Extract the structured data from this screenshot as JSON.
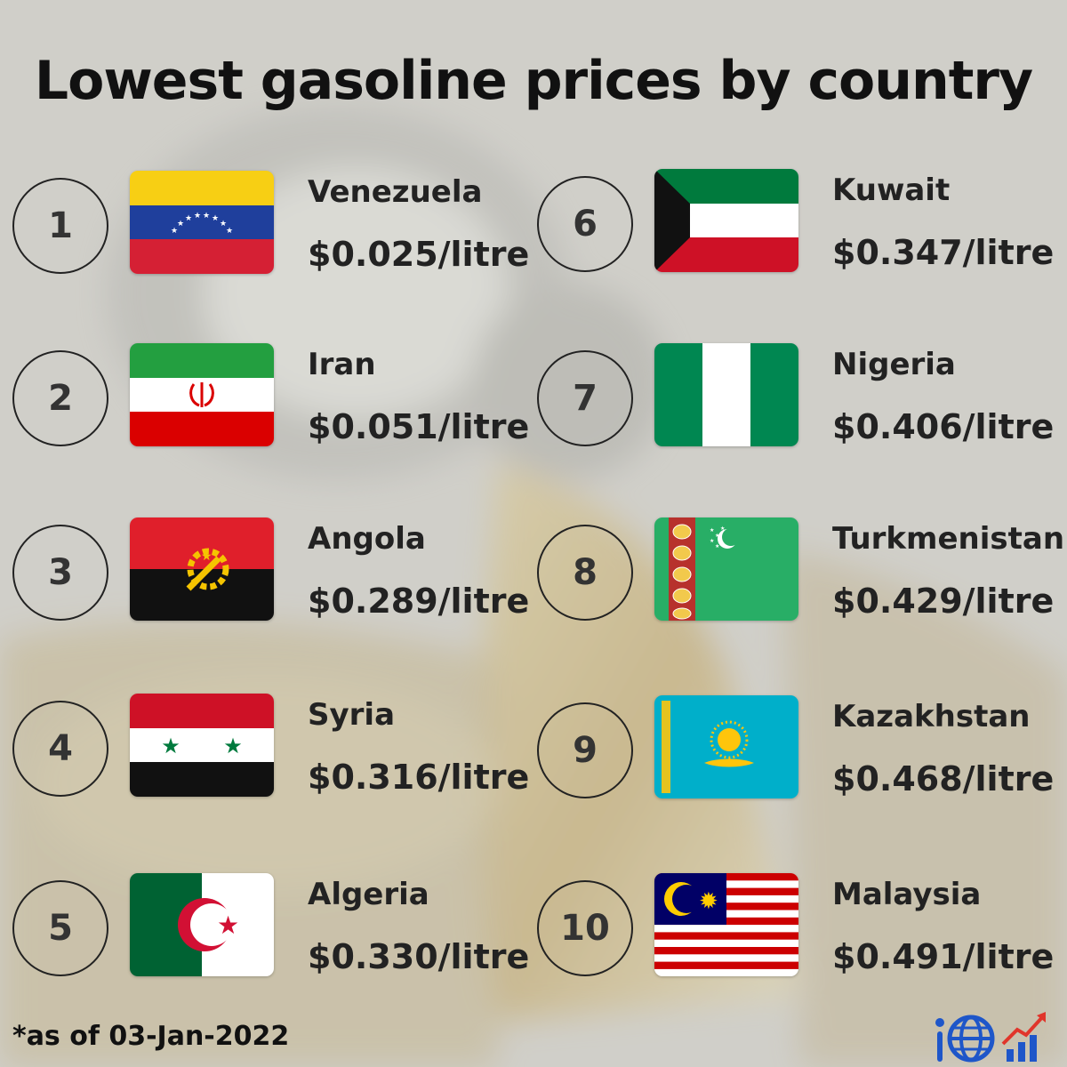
{
  "title": "Lowest gasoline prices by country",
  "footnote": "*as of 03-Jan-2022",
  "entries": [
    {
      "rank": "1",
      "country": "Venezuela",
      "price": "$0.025/litre",
      "flag_icon": "venezuela-flag"
    },
    {
      "rank": "2",
      "country": "Iran",
      "price": "$0.051/litre",
      "flag_icon": "iran-flag"
    },
    {
      "rank": "3",
      "country": "Angola",
      "price": "$0.289/litre",
      "flag_icon": "angola-flag"
    },
    {
      "rank": "4",
      "country": "Syria",
      "price": "$0.316/litre",
      "flag_icon": "syria-flag"
    },
    {
      "rank": "5",
      "country": "Algeria",
      "price": "$0.330/litre",
      "flag_icon": "algeria-flag"
    },
    {
      "rank": "6",
      "country": "Kuwait",
      "price": "$0.347/litre",
      "flag_icon": "kuwait-flag"
    },
    {
      "rank": "7",
      "country": "Nigeria",
      "price": "$0.406/litre",
      "flag_icon": "nigeria-flag"
    },
    {
      "rank": "8",
      "country": "Turkmenistan",
      "price": "$0.429/litre",
      "flag_icon": "turkmenistan-flag"
    },
    {
      "rank": "9",
      "country": "Kazakhstan",
      "price": "$0.468/litre",
      "flag_icon": "kazakhstan-flag"
    },
    {
      "rank": "10",
      "country": "Malaysia",
      "price": "$0.491/litre",
      "flag_icon": "malaysia-flag"
    }
  ],
  "colors": {
    "text": "#222222",
    "background": "#cfcdc8",
    "logo_blue": "#1e56c9",
    "logo_red": "#e0352b"
  },
  "icons": {
    "logo": "globe-chart-logo-icon"
  }
}
